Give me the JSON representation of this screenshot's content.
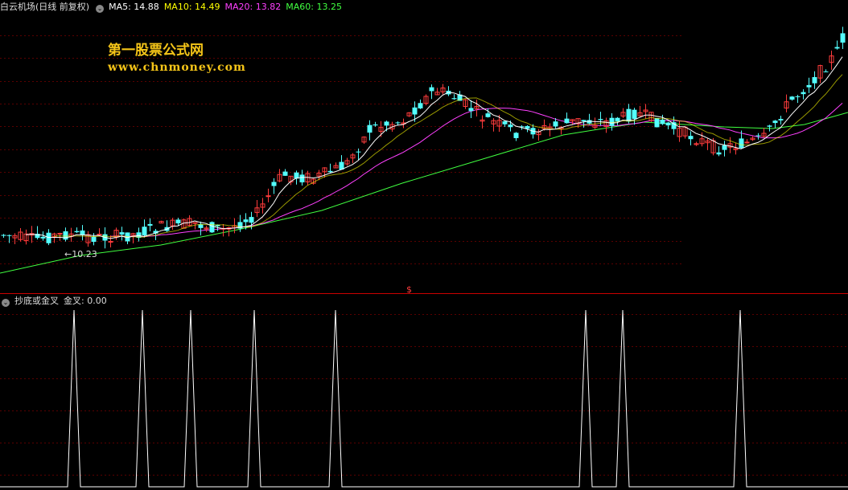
{
  "header": {
    "stock_title": "白云机场(日线 前复权)",
    "ma5": "MA5: 14.88",
    "ma10": "MA10: 14.49",
    "ma20": "MA20: 13.82",
    "ma60": "MA60: 13.25"
  },
  "watermark": {
    "line1": "第一股票公式网",
    "line2": "www.chnmoney.com"
  },
  "annotations": {
    "low_price_label": "←10.23",
    "signal_marker": "$"
  },
  "indicator": {
    "title": "抄底或金叉",
    "value": "金叉: 0.00"
  },
  "colors": {
    "up": "#ff3c3c",
    "down": "#54ffff",
    "ma5": "#ffffff",
    "ma10": "#ffff00",
    "ma20": "#ff40ff",
    "ma60": "#40ff40",
    "divider": "#cc0000"
  },
  "chart_data": [
    {
      "type": "candlestick",
      "series": [
        {
          "name": "MA5",
          "last": 14.88
        },
        {
          "name": "MA10",
          "last": 14.49
        },
        {
          "name": "MA20",
          "last": 13.82
        },
        {
          "name": "MA60",
          "last": 13.25
        }
      ],
      "annotations": [
        "←10.23"
      ]
    },
    {
      "type": "line",
      "series": [
        {
          "name": "金叉",
          "last": 0.0
        }
      ],
      "spike_positions": [
        92,
        177,
        237,
        316,
        417,
        728,
        774,
        920
      ]
    }
  ]
}
